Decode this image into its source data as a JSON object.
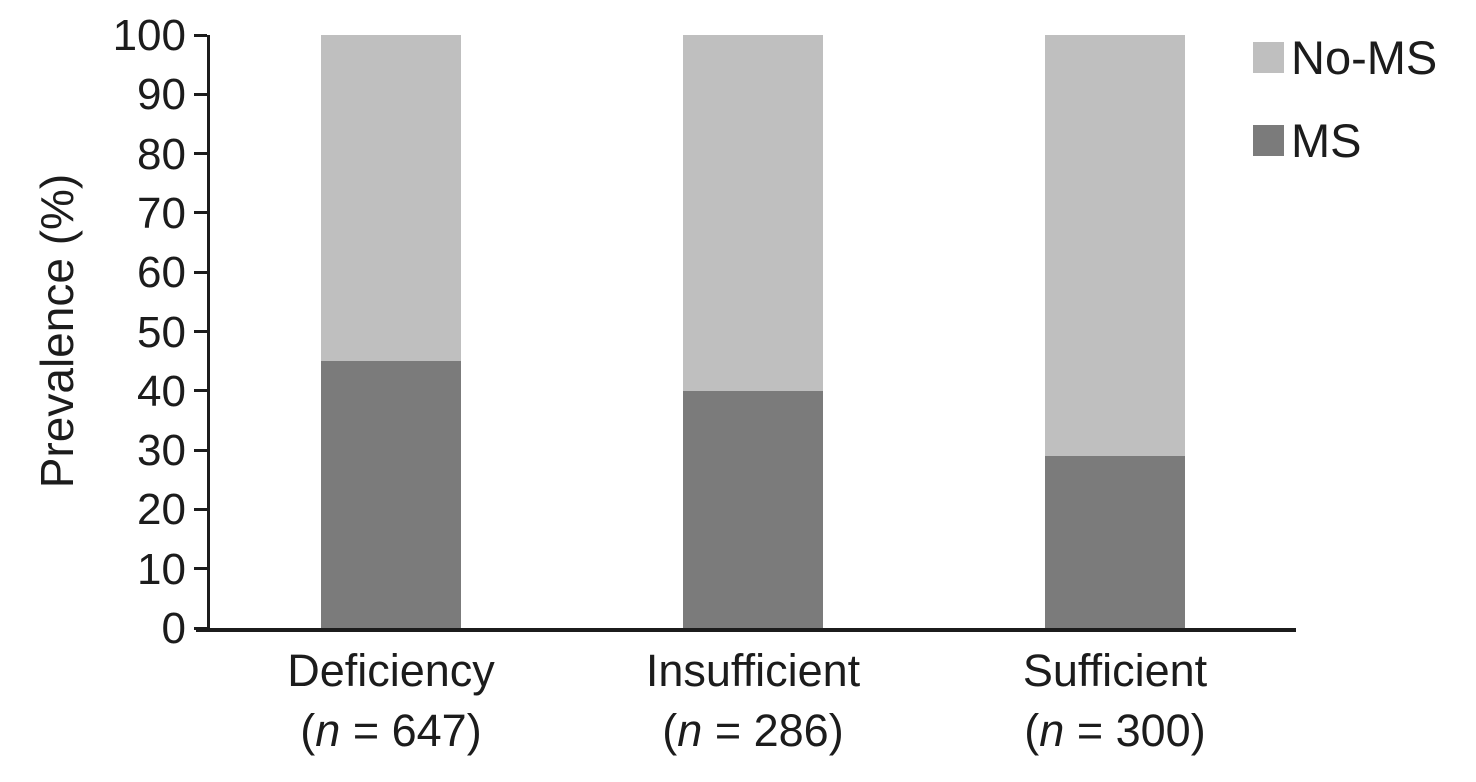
{
  "chart_data": {
    "type": "bar",
    "subtype": "stacked-100",
    "title": "",
    "xlabel": "",
    "ylabel": "Prevalence (%)",
    "ylim": [
      0,
      100
    ],
    "y_ticks": [
      0,
      10,
      20,
      30,
      40,
      50,
      60,
      70,
      80,
      90,
      100
    ],
    "grid": false,
    "categories": [
      {
        "label": "Deficiency",
        "n": "647"
      },
      {
        "label": "Insufficient",
        "n": "286"
      },
      {
        "label": "Sufficient",
        "n": "300"
      }
    ],
    "n_label_format": {
      "open": "(",
      "symbol": "n",
      "equals": " = ",
      "close": ")"
    },
    "series": [
      {
        "name": "MS",
        "color": "#7b7b7b",
        "values": [
          45,
          40,
          29
        ]
      },
      {
        "name": "No-MS",
        "color": "#bfbfbf",
        "values": [
          55,
          60,
          71
        ]
      }
    ],
    "stack_order_bottom_to_top": [
      "MS",
      "No-MS"
    ],
    "legend": {
      "position": "top-right",
      "order": [
        "No-MS",
        "MS"
      ]
    }
  },
  "colors": {
    "axis": "#1c1c1c",
    "text": "#1c1c1c",
    "background": "#ffffff"
  }
}
